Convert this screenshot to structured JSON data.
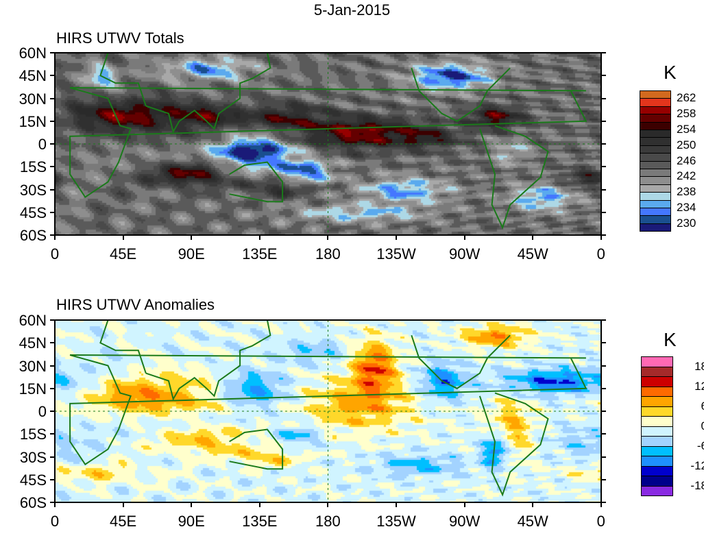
{
  "figure_title": "5-Jan-2015",
  "panels": [
    {
      "title": "HIRS UTWV Totals",
      "unit": "K",
      "levels": [
        262,
        260,
        258,
        256,
        254,
        252,
        250,
        248,
        246,
        244,
        242,
        240,
        238,
        236,
        234,
        232,
        230
      ],
      "level_labels": [
        "262",
        "258",
        "254",
        "250",
        "246",
        "242",
        "238",
        "234",
        "230"
      ],
      "colors": [
        "#d2691e",
        "#e3351c",
        "#960000",
        "#640000",
        "#3c0000",
        "#2a2a2a",
        "#303030",
        "#3a3a3a",
        "#4a4a4a",
        "#5a5a5a",
        "#7a7a7a",
        "#8e8e8e",
        "#a8a8a8",
        "#add8e6",
        "#5aaaee",
        "#4477ff",
        "#1a4f8f",
        "#1a1a78"
      ]
    },
    {
      "title": "HIRS UTWV Anomalies",
      "unit": "K",
      "levels": [
        18,
        15,
        12,
        9,
        6,
        3,
        0,
        -3,
        -6,
        -9,
        -12,
        -15,
        -18
      ],
      "level_labels": [
        "18",
        "12",
        "6",
        "0",
        "-6",
        "-12",
        "-18"
      ],
      "colors": [
        "#ff69b4",
        "#a52a2a",
        "#cd0000",
        "#ff6a00",
        "#ffa500",
        "#ffd82a",
        "#ffffcc",
        "#d0f4ff",
        "#a3d3ff",
        "#00bfff",
        "#1e90ff",
        "#0000cd",
        "#00008b",
        "#8a2be2"
      ]
    }
  ],
  "lon_labels": [
    "0",
    "45E",
    "90E",
    "135E",
    "180",
    "135W",
    "90W",
    "45W",
    "0"
  ],
  "lat_labels": [
    "60N",
    "45N",
    "30N",
    "15N",
    "0",
    "15S",
    "30S",
    "45S",
    "60S"
  ]
}
